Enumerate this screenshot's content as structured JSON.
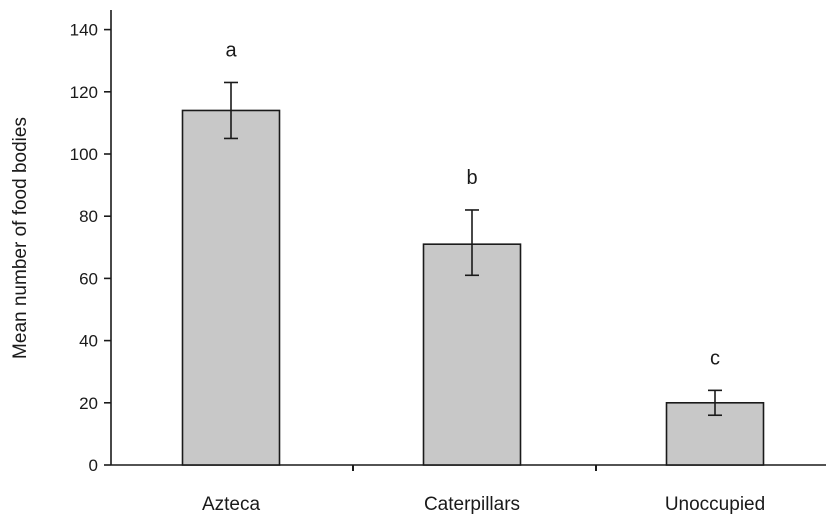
{
  "chart_data": {
    "type": "bar",
    "title": "",
    "xlabel": "",
    "ylabel": "Mean number of food bodies",
    "ylim": [
      0,
      145
    ],
    "yticks": [
      0,
      20,
      40,
      60,
      80,
      100,
      120,
      140
    ],
    "yticklabels": [
      "0",
      "20",
      "40",
      "60",
      "80",
      "100",
      "120",
      "140"
    ],
    "categories": [
      "Azteca",
      "Caterpillars",
      "Unoccupied"
    ],
    "values": [
      114,
      71,
      20
    ],
    "error_high": [
      123,
      82,
      24
    ],
    "error_low": [
      105,
      61,
      16
    ],
    "significance_labels": [
      "a",
      "b",
      "c"
    ],
    "grid": false,
    "legend": "none",
    "colors": {
      "bar_fill": "#c8c8c8",
      "bar_stroke": "#1a1a1a",
      "axis": "#1a1a1a"
    }
  }
}
